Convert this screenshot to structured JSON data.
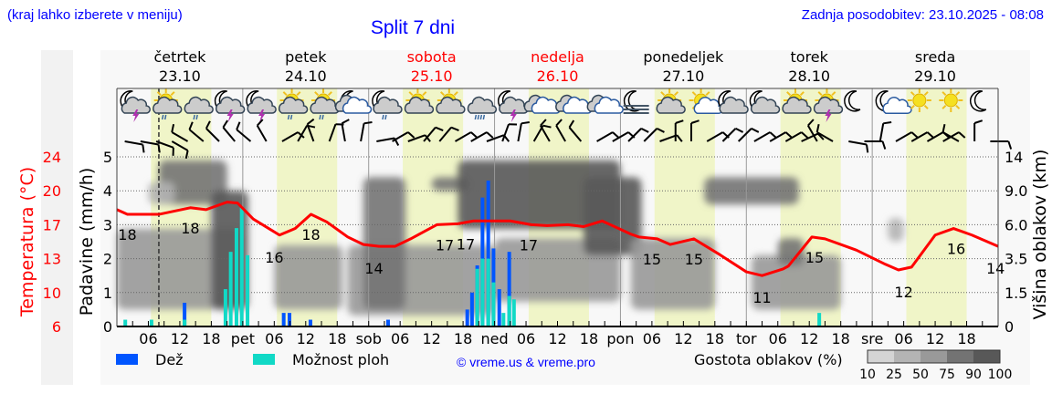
{
  "header": {
    "location_hint": "(kraj lahko izberete v meniju)",
    "title": "Split 7 dni",
    "updated": "Zadnja posodobitev: 23.10.2025 - 08:08"
  },
  "colors": {
    "rain": "#0055ff",
    "showers": "#11d9c6",
    "temperature": "#ff0000",
    "daylight": "#f0f5c8",
    "weekend": "#ff0000",
    "link": "#0000ff"
  },
  "days": [
    {
      "name": "četrtek",
      "date": "23.10",
      "weekend": false
    },
    {
      "name": "petek",
      "date": "24.10",
      "weekend": false
    },
    {
      "name": "sobota",
      "date": "25.10",
      "weekend": true
    },
    {
      "name": "nedelja",
      "date": "26.10",
      "weekend": true
    },
    {
      "name": "ponedeljek",
      "date": "27.10",
      "weekend": false
    },
    {
      "name": "torek",
      "date": "28.10",
      "weekend": false
    },
    {
      "name": "sreda",
      "date": "29.10",
      "weekend": false
    }
  ],
  "icons": [
    "night-cloud-thunder",
    "sun-cloud-light-rain",
    "cloud-light-rain",
    "night-cloud-thunder",
    "night-cloud-thunder",
    "sun-cloud-light-rain",
    "sun-cloud-light-rain",
    "night-overcast",
    "night-cloud-light-rain",
    "sun-cloud",
    "sun-cloud",
    "cloud-heavy-rain",
    "night-cloud-thunder",
    "overcast",
    "overcast",
    "overcast",
    "night-fog",
    "sun-cloud",
    "sun-small-cloud",
    "night-cloud",
    "night-cloud",
    "sun-cloud",
    "sun-cloud-thunder",
    "night-clear",
    "night-small-cloud",
    "sun",
    "sun",
    "night-clear"
  ],
  "legend": {
    "rain": "Dež",
    "showers": "Možnost ploh",
    "copyright": "© vreme.us & vreme.pro",
    "cloud_density": "Gostota oblakov (%)",
    "density_levels": [
      "10",
      "25",
      "50",
      "75",
      "90",
      "100"
    ]
  },
  "chart_data": {
    "type": "meteogram",
    "title": "Split 7 dni",
    "x_unit": "hours from 23.10 00:00",
    "xlim": [
      0,
      168
    ],
    "now_hour": 8,
    "xticks": [
      {
        "h": 6,
        "label": "06"
      },
      {
        "h": 12,
        "label": "12"
      },
      {
        "h": 18,
        "label": "18"
      },
      {
        "h": 24,
        "label": "pet"
      },
      {
        "h": 30,
        "label": "06"
      },
      {
        "h": 36,
        "label": "12"
      },
      {
        "h": 42,
        "label": "18"
      },
      {
        "h": 48,
        "label": "sob"
      },
      {
        "h": 54,
        "label": "06"
      },
      {
        "h": 60,
        "label": "12"
      },
      {
        "h": 66,
        "label": "18"
      },
      {
        "h": 72,
        "label": "ned"
      },
      {
        "h": 78,
        "label": "06"
      },
      {
        "h": 84,
        "label": "12"
      },
      {
        "h": 90,
        "label": "18"
      },
      {
        "h": 96,
        "label": "pon"
      },
      {
        "h": 102,
        "label": "06"
      },
      {
        "h": 108,
        "label": "12"
      },
      {
        "h": 114,
        "label": "18"
      },
      {
        "h": 120,
        "label": "tor"
      },
      {
        "h": 126,
        "label": "06"
      },
      {
        "h": 132,
        "label": "12"
      },
      {
        "h": 138,
        "label": "18"
      },
      {
        "h": 144,
        "label": "sre"
      },
      {
        "h": 150,
        "label": "06"
      },
      {
        "h": 156,
        "label": "12"
      },
      {
        "h": 162,
        "label": "18"
      }
    ],
    "precip_axis": {
      "label": "Padavine (mm/h)",
      "ticks": [
        "0",
        "1",
        "2",
        "3",
        "4",
        "5"
      ],
      "ylim": [
        0,
        5
      ]
    },
    "temp_axis": {
      "label": "Temperatura (°C)",
      "ticks": [
        "6",
        "10",
        "13",
        "17",
        "20",
        "24"
      ],
      "ylim": [
        6,
        24
      ]
    },
    "cloud_axis": {
      "label": "Višina oblakov (km)",
      "ticks": [
        "0",
        "1.5",
        "3.5",
        "6.0",
        "9.0",
        "14"
      ]
    },
    "daylight": [
      [
        6.5,
        18
      ],
      [
        30.5,
        42
      ],
      [
        54.5,
        66
      ],
      [
        78.5,
        90
      ],
      [
        102.5,
        114
      ],
      [
        126.5,
        138
      ],
      [
        150.5,
        162
      ]
    ],
    "temperature": [
      [
        0,
        18.4
      ],
      [
        2,
        17.9
      ],
      [
        8,
        17.9
      ],
      [
        14,
        18.6
      ],
      [
        17,
        18.4
      ],
      [
        21,
        19.2
      ],
      [
        23,
        19.1
      ],
      [
        26,
        17.4
      ],
      [
        31,
        15.7
      ],
      [
        34,
        16.4
      ],
      [
        37,
        17.9
      ],
      [
        40,
        17.1
      ],
      [
        44,
        15.5
      ],
      [
        47,
        14.7
      ],
      [
        50,
        14.5
      ],
      [
        53,
        14.5
      ],
      [
        56,
        15.3
      ],
      [
        61,
        16.8
      ],
      [
        65,
        16.9
      ],
      [
        68,
        17.2
      ],
      [
        75,
        17.2
      ],
      [
        79,
        16.8
      ],
      [
        82,
        16.7
      ],
      [
        86,
        16.8
      ],
      [
        89,
        16.6
      ],
      [
        92.5,
        17.2
      ],
      [
        98,
        15.8
      ],
      [
        99.5,
        15.5
      ],
      [
        103,
        15.3
      ],
      [
        105.5,
        14.7
      ],
      [
        110,
        15.3
      ],
      [
        115,
        13.6
      ],
      [
        120,
        11.8
      ],
      [
        123,
        11.4
      ],
      [
        127,
        12.1
      ],
      [
        128,
        12.4
      ],
      [
        132.5,
        15.5
      ],
      [
        135,
        15.3
      ],
      [
        139.5,
        14.4
      ],
      [
        141,
        14.1
      ],
      [
        146.5,
        12.6
      ],
      [
        149,
        12.0
      ],
      [
        151.5,
        12.3
      ],
      [
        156,
        15.7
      ],
      [
        159.5,
        16.4
      ],
      [
        163,
        15.7
      ],
      [
        168,
        14.5
      ]
    ],
    "temp_labels": [
      {
        "h": 2,
        "value": "18"
      },
      {
        "h": 14,
        "value": "18"
      },
      {
        "h": 30,
        "value": "16"
      },
      {
        "h": 37,
        "value": "18"
      },
      {
        "h": 49,
        "value": "14"
      },
      {
        "h": 62.5,
        "value": "17"
      },
      {
        "h": 66.5,
        "value": "17"
      },
      {
        "h": 78.5,
        "value": "17"
      },
      {
        "h": 102,
        "value": "15"
      },
      {
        "h": 110,
        "value": "15"
      },
      {
        "h": 123,
        "value": "11"
      },
      {
        "h": 133,
        "value": "15"
      },
      {
        "h": 150,
        "value": "12"
      },
      {
        "h": 160,
        "value": "16"
      },
      {
        "h": 167.5,
        "value": "14"
      }
    ],
    "precipitation": [
      {
        "h": 1.6,
        "rain": 0,
        "showers": 0.2
      },
      {
        "h": 6.6,
        "rain": 0,
        "showers": 0.2
      },
      {
        "h": 12.9,
        "rain": 0.7,
        "showers": 0.2
      },
      {
        "h": 20.7,
        "rain": 0,
        "showers": 1.1
      },
      {
        "h": 21.7,
        "rain": 0,
        "showers": 2.2
      },
      {
        "h": 22.8,
        "rain": 0,
        "showers": 2.9
      },
      {
        "h": 23.8,
        "rain": 0,
        "showers": 3.5
      },
      {
        "h": 24.9,
        "rain": 0,
        "showers": 2.1
      },
      {
        "h": 31.8,
        "rain": 0.4,
        "showers": 0
      },
      {
        "h": 32.9,
        "rain": 0.4,
        "showers": 0
      },
      {
        "h": 36.9,
        "rain": 0.2,
        "showers": 0
      },
      {
        "h": 51.7,
        "rain": 0.2,
        "showers": 0
      },
      {
        "h": 66.8,
        "rain": 0.5,
        "showers": 0
      },
      {
        "h": 67.7,
        "rain": 1.0,
        "showers": 0
      },
      {
        "h": 68.7,
        "rain": 1.8,
        "showers": 1.7
      },
      {
        "h": 69.7,
        "rain": 3.8,
        "showers": 2.0
      },
      {
        "h": 70.8,
        "rain": 4.3,
        "showers": 2.0
      },
      {
        "h": 71.8,
        "rain": 2.3,
        "showers": 1.3
      },
      {
        "h": 72.9,
        "rain": 1.1,
        "showers": 0
      },
      {
        "h": 73.7,
        "rain": 0,
        "showers": 0.4
      },
      {
        "h": 74.8,
        "rain": 2.2,
        "showers": 0.9
      },
      {
        "h": 75.7,
        "rain": 0,
        "showers": 0.8
      },
      {
        "h": 133.9,
        "rain": 0,
        "showers": 0.4
      }
    ],
    "clouds": [
      {
        "h": [
          0,
          24
        ],
        "km": [
          0.75,
          5.7
        ],
        "density": 50
      },
      {
        "h": [
          8,
          21
        ],
        "km": [
          7.8,
          13.5
        ],
        "density": 75
      },
      {
        "h": [
          18,
          25
        ],
        "km": [
          0.75,
          9
        ],
        "density": 90
      },
      {
        "h": [
          6,
          11
        ],
        "km": [
          7.8,
          10.3
        ],
        "density": 25
      },
      {
        "h": [
          30,
          43
        ],
        "km": [
          0.75,
          4.5
        ],
        "density": 50
      },
      {
        "h": [
          44,
          72
        ],
        "km": [
          0.5,
          4.5
        ],
        "density": 50
      },
      {
        "h": [
          47,
          55
        ],
        "km": [
          0.75,
          11
        ],
        "density": 75
      },
      {
        "h": [
          60,
          67
        ],
        "km": [
          9,
          11
        ],
        "density": 75
      },
      {
        "h": [
          65,
          96
        ],
        "km": [
          5.7,
          13.5
        ],
        "density": 90
      },
      {
        "h": [
          72,
          96
        ],
        "km": [
          1.1,
          5
        ],
        "density": 50
      },
      {
        "h": [
          89,
          100
        ],
        "km": [
          3.75,
          11
        ],
        "density": 90
      },
      {
        "h": [
          98,
          114
        ],
        "km": [
          0.75,
          5
        ],
        "density": 50
      },
      {
        "h": [
          112,
          130
        ],
        "km": [
          7.8,
          11
        ],
        "density": 75
      },
      {
        "h": [
          121,
          138
        ],
        "km": [
          0.75,
          3.75
        ],
        "density": 50
      },
      {
        "h": [
          126,
          131
        ],
        "km": [
          3.1,
          5
        ],
        "density": 75
      },
      {
        "h": [
          147,
          150
        ],
        "km": [
          4.75,
          6.6
        ],
        "density": 25
      }
    ],
    "wind_dir_deg": [
      100,
      100,
      110,
      120,
      300,
      310,
      315,
      320,
      310,
      330,
      60,
      30,
      340,
      20,
      350,
      10,
      80,
      60,
      70,
      40,
      40,
      60,
      60,
      70,
      20,
      10,
      30,
      330,
      330,
      320,
      60,
      60,
      45,
      45,
      70,
      0,
      0,
      60,
      45,
      45,
      60,
      60,
      60,
      65,
      330,
      300,
      100,
      90,
      10,
      60,
      60,
      60,
      60,
      300,
      0,
      90
    ]
  }
}
